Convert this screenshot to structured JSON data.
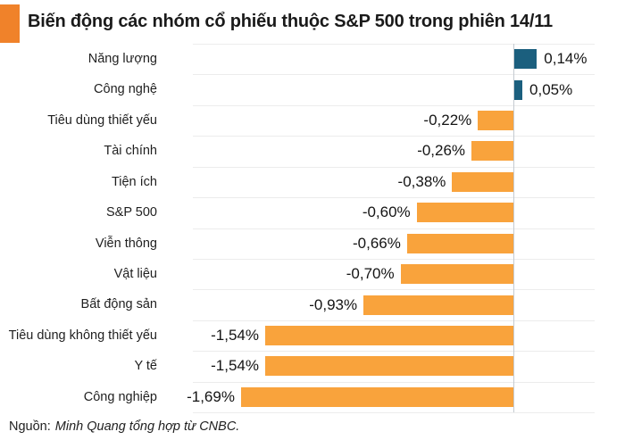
{
  "header": {
    "title": "Biến động các nhóm cổ phiếu thuộc S&P 500 trong phiên 14/11"
  },
  "chart_data": {
    "type": "bar",
    "orientation": "horizontal",
    "title": "Biến động các nhóm cổ phiếu thuộc S&P 500 trong phiên 14/11",
    "categories": [
      "Năng lượng",
      "Công nghệ",
      "Tiêu dùng thiết yếu",
      "Tài chính",
      "Tiện ích",
      "S&P 500",
      "Viễn thông",
      "Vật liệu",
      "Bất động sản",
      "Tiêu dùng không thiết yếu",
      "Y tế",
      "Công nghiệp"
    ],
    "values": [
      0.14,
      0.05,
      -0.22,
      -0.26,
      -0.38,
      -0.6,
      -0.66,
      -0.7,
      -0.93,
      -1.54,
      -1.54,
      -1.69
    ],
    "value_labels": [
      "0,14%",
      "0,05%",
      "-0,22%",
      "-0,26%",
      "-0,38%",
      "-0,60%",
      "-0,66%",
      "-0,70%",
      "-0,93%",
      "-1,54%",
      "-1,54%",
      "-1,69%"
    ],
    "unit": "%",
    "xlim": [
      -2.0,
      0.7
    ],
    "grid": "horizontal row separators, vertical zero axis",
    "legend": "none",
    "source": "Nguồn: Minh Quang tổng hợp từ CNBC."
  },
  "footer": {
    "source_prefix": "Nguồn:",
    "source_text": "Minh Quang tổng hợp từ CNBC."
  },
  "colors": {
    "accent_square": "#F0822A",
    "positive_bar": "#1B5F7E",
    "negative_bar": "#F9A33C",
    "separator": "#ECECEC",
    "zero_line": "#C5CBD1",
    "title_text": "#1A1A1A"
  }
}
